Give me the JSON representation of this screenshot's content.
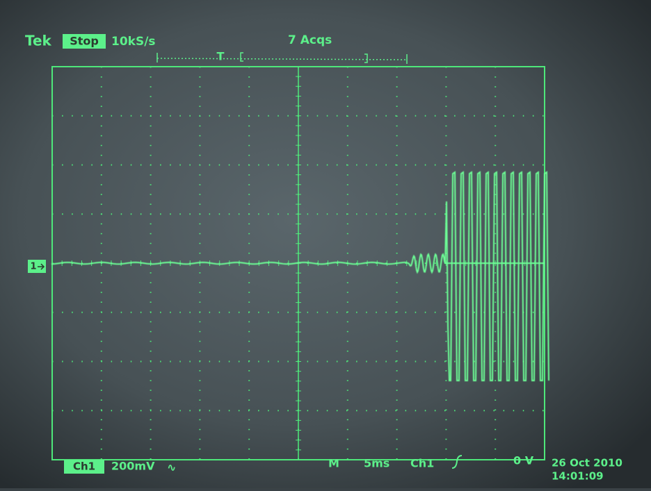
{
  "header": {
    "brand": "Tek",
    "status": "Stop",
    "sample_rate": "10kS/s",
    "acquisitions": "7 Acqs",
    "trigger_position": "T"
  },
  "channel_marker": "1",
  "footer": {
    "channel": "Ch1",
    "scale": "200mV",
    "coupling": "∿",
    "timebase_label": "M",
    "timebase": "5ms",
    "trigger_source": "Ch1",
    "trigger_level": "0 V"
  },
  "timestamp": {
    "date": "26 Oct 2010",
    "time": "14:01:09"
  }
}
